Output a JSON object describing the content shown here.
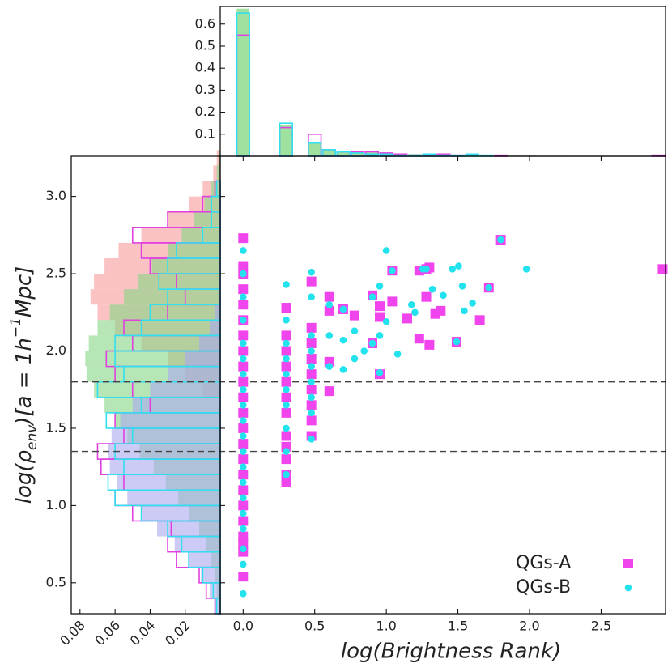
{
  "chart_data": [
    {
      "type": "scatter",
      "xlabel": "log(Brightness Rank)",
      "ylabel_parts": [
        "log(ρ",
        "env",
        ")[a = 1h",
        "−1",
        "Mpc]"
      ],
      "xlim": [
        -0.16,
        2.95
      ],
      "ylim": [
        0.3,
        3.26
      ],
      "xticks": [
        {
          "value": 0,
          "label": "0.0"
        },
        0.5,
        {
          "value": 1,
          "label": "1.0"
        },
        1.5,
        {
          "value": 2,
          "label": "2.0"
        },
        2.5
      ],
      "yticks": [
        0.5,
        {
          "value": 1,
          "label": "1.0"
        },
        1.5,
        {
          "value": 2,
          "label": "2.0"
        },
        2.5,
        {
          "value": 3,
          "label": "3.0"
        }
      ],
      "hlines": [
        1.8,
        1.35
      ],
      "hline_color": "#444444",
      "legend": "lower right",
      "series": [
        {
          "name": "QGs-A",
          "color": "#f044ec",
          "marker": "square",
          "x": [
            0,
            0,
            0,
            0,
            0,
            0,
            0,
            0,
            0,
            0,
            0,
            0,
            0,
            0,
            0,
            0,
            0,
            0,
            0,
            0,
            0,
            0,
            0,
            0.301,
            0.301,
            0.301,
            0.301,
            0.301,
            0.301,
            0.301,
            0.301,
            0.301,
            0.301,
            0.301,
            0.301,
            0.477,
            0.477,
            0.477,
            0.477,
            0.477,
            0.477,
            0.477,
            0.477,
            0.477,
            0.602,
            0.602,
            0.602,
            0.602,
            0.699,
            0.778,
            0.903,
            0.903,
            0.954,
            0.954,
            0.954,
            1.041,
            1.041,
            1.146,
            1.23,
            1.23,
            1.279,
            1.279,
            1.301,
            1.301,
            1.342,
            1.38,
            1.491,
            1.653,
            1.716,
            1.8,
            2.93
          ],
          "y": [
            0.54,
            0.7,
            0.75,
            0.8,
            0.9,
            1.0,
            1.1,
            1.2,
            1.3,
            1.4,
            1.5,
            1.6,
            1.7,
            1.8,
            1.9,
            2.0,
            2.1,
            2.2,
            2.3,
            2.4,
            2.5,
            2.55,
            2.73,
            1.15,
            1.2,
            1.3,
            1.38,
            1.45,
            1.6,
            1.7,
            1.8,
            1.9,
            2.0,
            2.1,
            2.28,
            1.45,
            1.55,
            1.65,
            1.75,
            1.85,
            1.95,
            2.05,
            2.15,
            2.45,
            1.74,
            1.93,
            2.26,
            2.35,
            2.27,
            2.23,
            2.05,
            2.36,
            1.85,
            2.22,
            2.29,
            2.32,
            2.52,
            2.21,
            2.08,
            2.52,
            2.35,
            2.53,
            2.04,
            2.54,
            2.24,
            2.26,
            2.06,
            2.2,
            2.41,
            2.72,
            2.53
          ]
        },
        {
          "name": "QGs-B",
          "color": "#22e2ee",
          "marker": "circle",
          "x": [
            0,
            0,
            0,
            0,
            0,
            0,
            0,
            0,
            0,
            0,
            0,
            0,
            0,
            0,
            0,
            0,
            0,
            0,
            0,
            0,
            0.301,
            0.301,
            0.301,
            0.301,
            0.301,
            0.301,
            0.301,
            0.301,
            0.301,
            0.301,
            0.477,
            0.477,
            0.477,
            0.477,
            0.477,
            0.477,
            0.477,
            0.477,
            0.477,
            0.602,
            0.602,
            0.602,
            0.699,
            0.699,
            0.699,
            0.778,
            0.778,
            0.845,
            0.903,
            0.903,
            0.954,
            0.954,
            0.954,
            1.0,
            1.0,
            1.041,
            1.079,
            1.176,
            1.2,
            1.255,
            1.279,
            1.322,
            1.398,
            1.462,
            1.491,
            1.505,
            1.531,
            1.544,
            1.602,
            1.716,
            1.799,
            1.978
          ],
          "y": [
            0.43,
            0.62,
            0.72,
            0.85,
            0.95,
            1.05,
            1.15,
            1.25,
            1.35,
            1.45,
            1.55,
            1.65,
            1.75,
            1.85,
            1.95,
            2.05,
            2.2,
            2.35,
            2.5,
            2.65,
            1.2,
            1.35,
            1.5,
            1.65,
            1.75,
            1.85,
            1.95,
            2.05,
            2.2,
            2.43,
            1.43,
            1.6,
            1.7,
            1.8,
            1.9,
            2.0,
            2.1,
            2.35,
            2.51,
            1.9,
            2.1,
            2.3,
            1.88,
            2.07,
            2.27,
            1.95,
            2.13,
            2.0,
            2.05,
            2.35,
            1.86,
            2.1,
            2.42,
            2.19,
            2.65,
            2.52,
            1.98,
            2.3,
            2.25,
            2.53,
            2.53,
            2.4,
            2.36,
            2.53,
            2.06,
            2.55,
            2.42,
            2.26,
            2.31,
            2.41,
            2.72,
            2.53
          ]
        }
      ]
    },
    {
      "type": "histogram",
      "orientation": "vertical",
      "xlim": [
        -0.16,
        2.95
      ],
      "ylim": [
        0,
        0.68
      ],
      "yticks": [
        0.1,
        0.2,
        0.3,
        0.4,
        0.5,
        0.6
      ],
      "bins": [
        -0.05,
        0.05,
        0.15,
        0.25,
        0.35,
        0.45,
        0.55,
        0.65,
        0.75,
        0.85,
        0.95,
        1.05,
        1.15,
        1.25,
        1.35,
        1.45,
        1.55,
        1.65,
        1.75,
        1.85,
        1.95,
        2.05,
        2.15,
        2.25,
        2.35,
        2.45,
        2.55,
        2.65,
        2.75,
        2.85,
        2.95
      ],
      "series": [
        {
          "color": "#5fcf5f",
          "fill": true,
          "values": [
            0.67,
            0,
            0,
            0.14,
            0,
            0.06,
            0.03,
            0.025,
            0.02,
            0.018,
            0.015,
            0.012,
            0.01,
            0.009,
            0.008,
            0.007,
            0.006,
            0.005,
            0.004,
            0.003,
            0.003,
            0.002,
            0.002,
            0.001,
            0.001,
            0.001,
            0.001,
            0.001,
            0.001,
            0.001
          ]
        },
        {
          "color": "#e040e0",
          "fill": false,
          "values": [
            0.55,
            0,
            0,
            0.13,
            0,
            0.1,
            0.03,
            0.02,
            0.02,
            0.02,
            0.015,
            0.01,
            0.005,
            0.005,
            0.01,
            0.005,
            0,
            0,
            0.005,
            0,
            0,
            0,
            0,
            0,
            0,
            0,
            0,
            0,
            0,
            0.005
          ]
        },
        {
          "color": "#30e0f0",
          "fill": false,
          "values": [
            0.65,
            0,
            0,
            0.15,
            0,
            0.06,
            0.03,
            0.02,
            0.015,
            0.01,
            0.01,
            0.005,
            0.005,
            0.01,
            0.005,
            0.005,
            0.01,
            0.005,
            0,
            0,
            0,
            0,
            0,
            0,
            0,
            0,
            0,
            0,
            0,
            0
          ]
        }
      ]
    },
    {
      "type": "histogram",
      "orientation": "horizontal",
      "xlim": [
        0.085,
        0
      ],
      "xticks": [
        0.02,
        0.04,
        0.06,
        0.08
      ],
      "ylim": [
        0.3,
        3.26
      ],
      "bins": [
        0.3,
        0.4,
        0.5,
        0.6,
        0.7,
        0.8,
        0.9,
        1.0,
        1.1,
        1.2,
        1.3,
        1.4,
        1.5,
        1.6,
        1.7,
        1.8,
        1.9,
        2.0,
        2.1,
        2.2,
        2.3,
        2.4,
        2.5,
        2.6,
        2.7,
        2.8,
        2.9,
        3.0,
        3.1,
        3.2,
        3.3
      ],
      "series": [
        {
          "color": "#f79a9a",
          "fill": true,
          "values": [
            0,
            0,
            0,
            0,
            0,
            0,
            0,
            0,
            0,
            0,
            0,
            0,
            0,
            0,
            0.01,
            0.02,
            0.03,
            0.045,
            0.06,
            0.07,
            0.074,
            0.072,
            0.066,
            0.058,
            0.045,
            0.03,
            0.018,
            0.01,
            0.004,
            0.002
          ]
        },
        {
          "color": "#86d686",
          "fill": true,
          "values": [
            0.001,
            0.002,
            0.003,
            0.005,
            0.008,
            0.012,
            0.018,
            0.024,
            0.031,
            0.038,
            0.046,
            0.053,
            0.06,
            0.066,
            0.072,
            0.076,
            0.077,
            0.075,
            0.07,
            0.063,
            0.055,
            0.047,
            0.039,
            0.03,
            0.022,
            0.015,
            0.009,
            0.005,
            0.002,
            0.001
          ]
        },
        {
          "color": "#a8a8f0",
          "fill": true,
          "values": [
            0.003,
            0.006,
            0.011,
            0.018,
            0.026,
            0.036,
            0.045,
            0.053,
            0.059,
            0.063,
            0.064,
            0.062,
            0.057,
            0.05,
            0.04,
            0.03,
            0.02,
            0.012,
            0.006,
            0.003,
            0.001,
            0,
            0,
            0,
            0,
            0,
            0,
            0,
            0,
            0
          ]
        },
        {
          "color": "#e040e0",
          "fill": false,
          "values": [
            0.003,
            0.008,
            0.012,
            0.025,
            0.03,
            0.028,
            0.05,
            0.06,
            0.055,
            0.068,
            0.07,
            0.055,
            0.06,
            0.04,
            0.05,
            0.06,
            0.065,
            0.05,
            0.055,
            0.03,
            0.02,
            0.025,
            0.04,
            0.045,
            0.05,
            0.03,
            0.01,
            0.003,
            0,
            0
          ]
        },
        {
          "color": "#30e0f0",
          "fill": false,
          "values": [
            0.002,
            0.004,
            0.01,
            0.018,
            0.022,
            0.03,
            0.045,
            0.06,
            0.064,
            0.055,
            0.06,
            0.05,
            0.065,
            0.045,
            0.07,
            0.055,
            0.06,
            0.06,
            0.045,
            0.04,
            0.03,
            0.035,
            0.03,
            0.025,
            0.01,
            0.005,
            0.005,
            0.002,
            0,
            0
          ]
        }
      ]
    }
  ]
}
